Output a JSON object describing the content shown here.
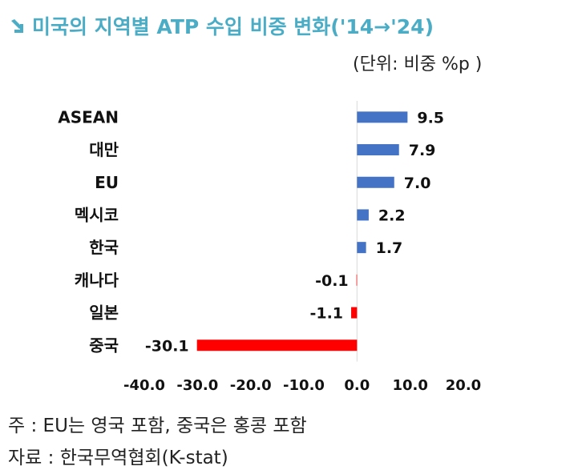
{
  "title": {
    "icon": "down-right-arrow-icon",
    "text": "미국의 지역별 ATP 수입 비중 변화('14→'24)"
  },
  "unit_label": "(단위: 비중 %p )",
  "chart_data": {
    "type": "bar",
    "orientation": "horizontal",
    "categories": [
      "ASEAN",
      "대만",
      "EU",
      "멕시코",
      "한국",
      "캐나다",
      "일본",
      "중국"
    ],
    "values": [
      9.5,
      7.9,
      7.0,
      2.2,
      1.7,
      -0.1,
      -1.1,
      -30.1
    ],
    "value_labels": [
      "9.5",
      "7.9",
      "7.0",
      "2.2",
      "1.7",
      "-0.1",
      "-1.1",
      "-30.1"
    ],
    "xlim": [
      -40,
      20
    ],
    "x_ticks": [
      -40,
      -30,
      -20,
      -10,
      0,
      10,
      20
    ],
    "x_tick_labels": [
      "-40.0",
      "-30.0",
      "-20.0",
      "-10.0",
      "0.0",
      "10.0",
      "20.0"
    ],
    "colors": {
      "positive": "#4472c4",
      "negative": "#ff0000"
    },
    "grid": false
  },
  "notes": [
    "주 : EU는 영국 포함, 중국은 홍콩 포함",
    "자료 : 한국무역협회(K-stat)"
  ]
}
